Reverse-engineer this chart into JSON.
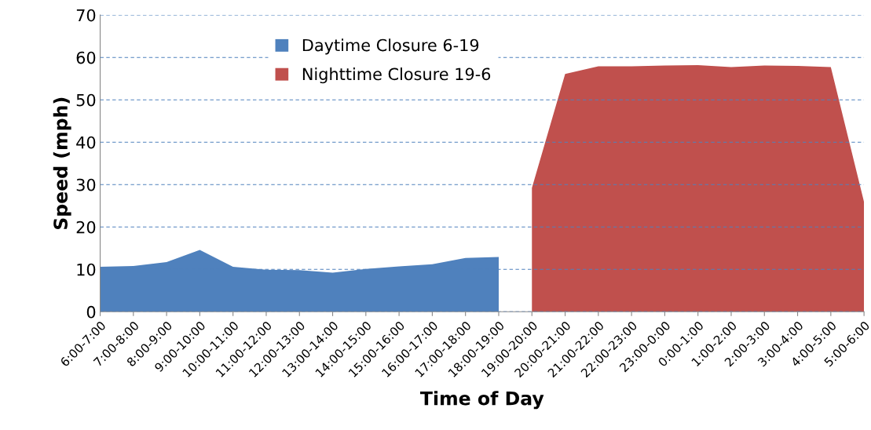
{
  "chart_data": {
    "type": "area",
    "xlabel": "Time of Day",
    "ylabel": "Speed (mph)",
    "categories": [
      "6:00-7:00",
      "7:00-8:00",
      "8:00-9:00",
      "9:00-10:00",
      "10:00-11:00",
      "11:00-12:00",
      "12:00-13:00",
      "13:00-14:00",
      "14:00-15:00",
      "15:00-16:00",
      "16:00-17:00",
      "17:00-18:00",
      "18:00-19:00",
      "19:00-20:00",
      "20:00-21:00",
      "21:00-22:00",
      "22:00-23:00",
      "23:00-0:00",
      "0:00-1:00",
      "1:00-2:00",
      "2:00-3:00",
      "3:00-4:00",
      "4:00-5:00",
      "5:00-6:00"
    ],
    "series": [
      {
        "name": "Daytime Closure 6-19",
        "color": "#4f81bd",
        "values": [
          10.6,
          10.8,
          11.7,
          14.6,
          10.6,
          9.9,
          9.8,
          9.2,
          10.1,
          10.7,
          11.2,
          12.7,
          12.9,
          null,
          null,
          null,
          null,
          null,
          null,
          null,
          null,
          null,
          null,
          null
        ]
      },
      {
        "name": "Nighttime Closure 19-6",
        "color": "#c0504d",
        "values": [
          null,
          null,
          null,
          null,
          null,
          null,
          null,
          null,
          null,
          null,
          null,
          null,
          null,
          29.2,
          56.1,
          57.9,
          57.9,
          58.1,
          58.2,
          57.7,
          58.1,
          58.0,
          57.7,
          25.9
        ]
      }
    ],
    "ylim": [
      0,
      70
    ],
    "yticks": [
      0,
      10,
      20,
      30,
      40,
      50,
      60,
      70
    ],
    "grid": "y",
    "legend": "top left"
  }
}
